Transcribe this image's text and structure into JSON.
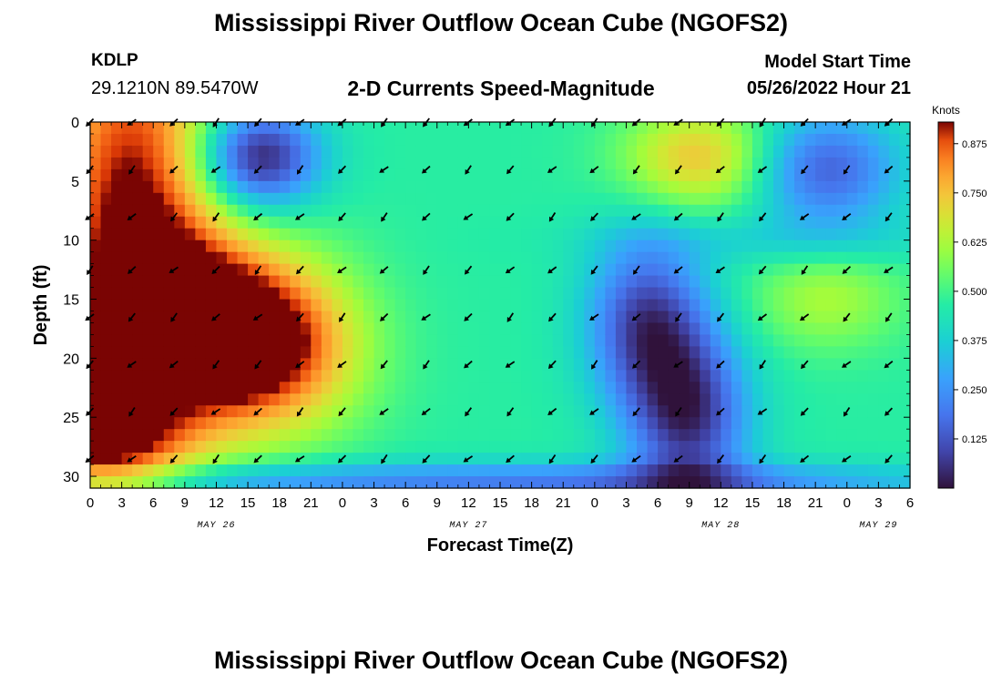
{
  "header": {
    "title": "Mississippi River Outflow Ocean Cube (NGOFS2)",
    "station": "KDLP",
    "coordinates": "29.1210N  89.5470W",
    "plot_title": "2-D Currents Speed-Magnitude",
    "model_start_label": "Model Start Time",
    "model_start_value": "05/26/2022 Hour 21"
  },
  "footer": {
    "title": "Mississippi River Outflow Ocean Cube (NGOFS2)"
  },
  "colors": {
    "arrow": "#000000",
    "axis": "#000000"
  },
  "chart_data": {
    "type": "heatmap",
    "title": "2-D Currents Speed-Magnitude",
    "xlabel": "Forecast Time(Z)",
    "ylabel": "Depth (ft)",
    "xlim": [
      0,
      78
    ],
    "ylim": [
      0,
      31
    ],
    "x_ticks": [
      0,
      3,
      6,
      9,
      12,
      15,
      18,
      21,
      24,
      27,
      30,
      33,
      36,
      39,
      42,
      45,
      48,
      51,
      54,
      57,
      60,
      63,
      66,
      69,
      72,
      75,
      78
    ],
    "x_tick_labels": [
      "0",
      "3",
      "6",
      "9",
      "12",
      "15",
      "18",
      "21",
      "0",
      "3",
      "6",
      "9",
      "12",
      "15",
      "18",
      "21",
      "0",
      "3",
      "6",
      "9",
      "12",
      "15",
      "18",
      "21",
      "0",
      "3",
      "6"
    ],
    "date_labels": [
      {
        "hour": 12,
        "text": "MAY 26"
      },
      {
        "hour": 36,
        "text": "MAY 27"
      },
      {
        "hour": 60,
        "text": "MAY 28"
      },
      {
        "hour": 75,
        "text": "MAY 29"
      }
    ],
    "y_ticks": [
      0,
      5,
      10,
      15,
      20,
      25,
      30
    ],
    "colorbar": {
      "label": "Knots",
      "range": [
        0,
        0.93
      ],
      "ticks": [
        0.125,
        0.25,
        0.375,
        0.5,
        0.625,
        0.75,
        0.875
      ],
      "tick_labels": [
        "0.125",
        "0.250",
        "0.375",
        "0.500",
        "0.625",
        "0.750",
        "0.875"
      ]
    },
    "speed_field": {
      "background": 0.47,
      "features": [
        {
          "hour": 4,
          "depth": 8,
          "sh": 6,
          "sd": 14,
          "amp": 0.48
        },
        {
          "hour": 0,
          "depth": 26,
          "sh": 6,
          "sd": 6,
          "amp": 0.4
        },
        {
          "hour": 17,
          "depth": 19,
          "sh": 6,
          "sd": 5,
          "amp": 0.45
        },
        {
          "hour": 10,
          "depth": 17,
          "sh": 6,
          "sd": 5,
          "amp": 0.35
        },
        {
          "hour": 16,
          "depth": 3,
          "sh": 4,
          "sd": 3,
          "amp": -0.47
        },
        {
          "hour": 7,
          "depth": 20,
          "sh": 3,
          "sd": 2.5,
          "amp": -0.25
        },
        {
          "hour": 10,
          "depth": 30.5,
          "sh": 30,
          "sd": 1.2,
          "amp": -0.2
        },
        {
          "hour": 56,
          "depth": 30.5,
          "sh": 20,
          "sd": 1.2,
          "amp": -0.2
        },
        {
          "hour": 58,
          "depth": 3,
          "sh": 5,
          "sd": 3,
          "amp": 0.28
        },
        {
          "hour": 70,
          "depth": 4,
          "sh": 5,
          "sd": 3.5,
          "amp": -0.32
        },
        {
          "hour": 53,
          "depth": 17,
          "sh": 4,
          "sd": 5,
          "amp": -0.38
        },
        {
          "hour": 57,
          "depth": 25,
          "sh": 4,
          "sd": 5,
          "amp": -0.4
        },
        {
          "hour": 70,
          "depth": 15,
          "sh": 5,
          "sd": 3,
          "amp": 0.15
        },
        {
          "hour": 66,
          "depth": 10,
          "sh": 12,
          "sd": 1.5,
          "amp": -0.08
        }
      ]
    },
    "arrows": {
      "hours": [
        0,
        4,
        8,
        12,
        16,
        20,
        24,
        28,
        32,
        36,
        40,
        44,
        48,
        52,
        56,
        60,
        64,
        68,
        72,
        76
      ],
      "depths": [
        0,
        4,
        8,
        12.5,
        16.5,
        20.5,
        24.5,
        28.5
      ],
      "default_dir_deg": 135
    }
  }
}
